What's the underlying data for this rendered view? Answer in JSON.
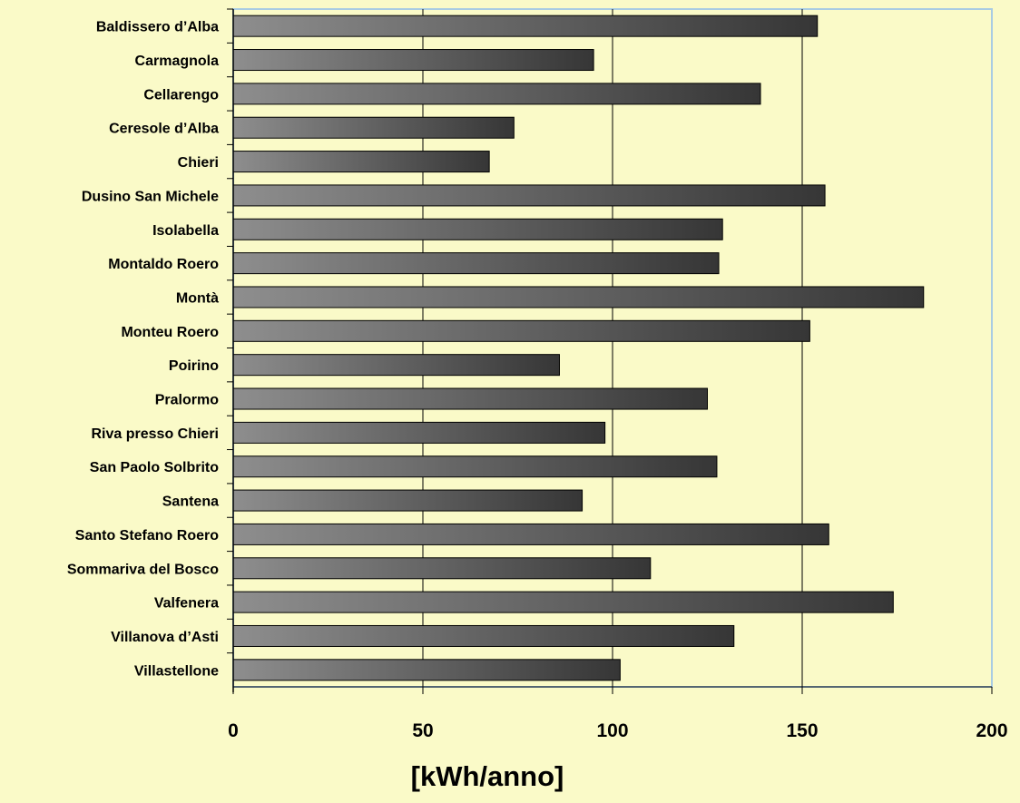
{
  "chart_data": {
    "type": "bar",
    "orientation": "horizontal",
    "categories": [
      "Baldissero d’Alba",
      "Carmagnola",
      "Cellarengo",
      "Ceresole d’Alba",
      "Chieri",
      "Dusino San Michele",
      "Isolabella",
      "Montaldo Roero",
      "Montà",
      "Monteu Roero",
      "Poirino",
      "Pralormo",
      "Riva presso Chieri",
      "San Paolo Solbrito",
      "Santena",
      "Santo Stefano Roero",
      "Sommariva del Bosco",
      "Valfenera",
      "Villanova d’Asti",
      "Villastellone"
    ],
    "values": [
      154,
      95,
      139,
      74,
      67.5,
      156,
      129,
      128,
      182,
      152,
      86,
      125,
      98,
      127.5,
      92,
      157,
      110,
      174,
      132,
      102
    ],
    "xlabel": "[kWh/anno]",
    "ylabel": "",
    "title": "",
    "xlim": [
      0,
      200
    ],
    "xticks": [
      0,
      50,
      100,
      150,
      200
    ],
    "xtick_labels": [
      "0",
      "50",
      "100",
      "150",
      "200"
    ],
    "grid": "vertical",
    "legend": "none",
    "colors": {
      "background": "#fafac8",
      "plot_background": "#fafac8",
      "bar_light": "#8e8e8e",
      "bar_dark": "#363636",
      "bar_border": "#000000",
      "gridline": "#000000",
      "plot_border": "#a9cce3"
    }
  }
}
